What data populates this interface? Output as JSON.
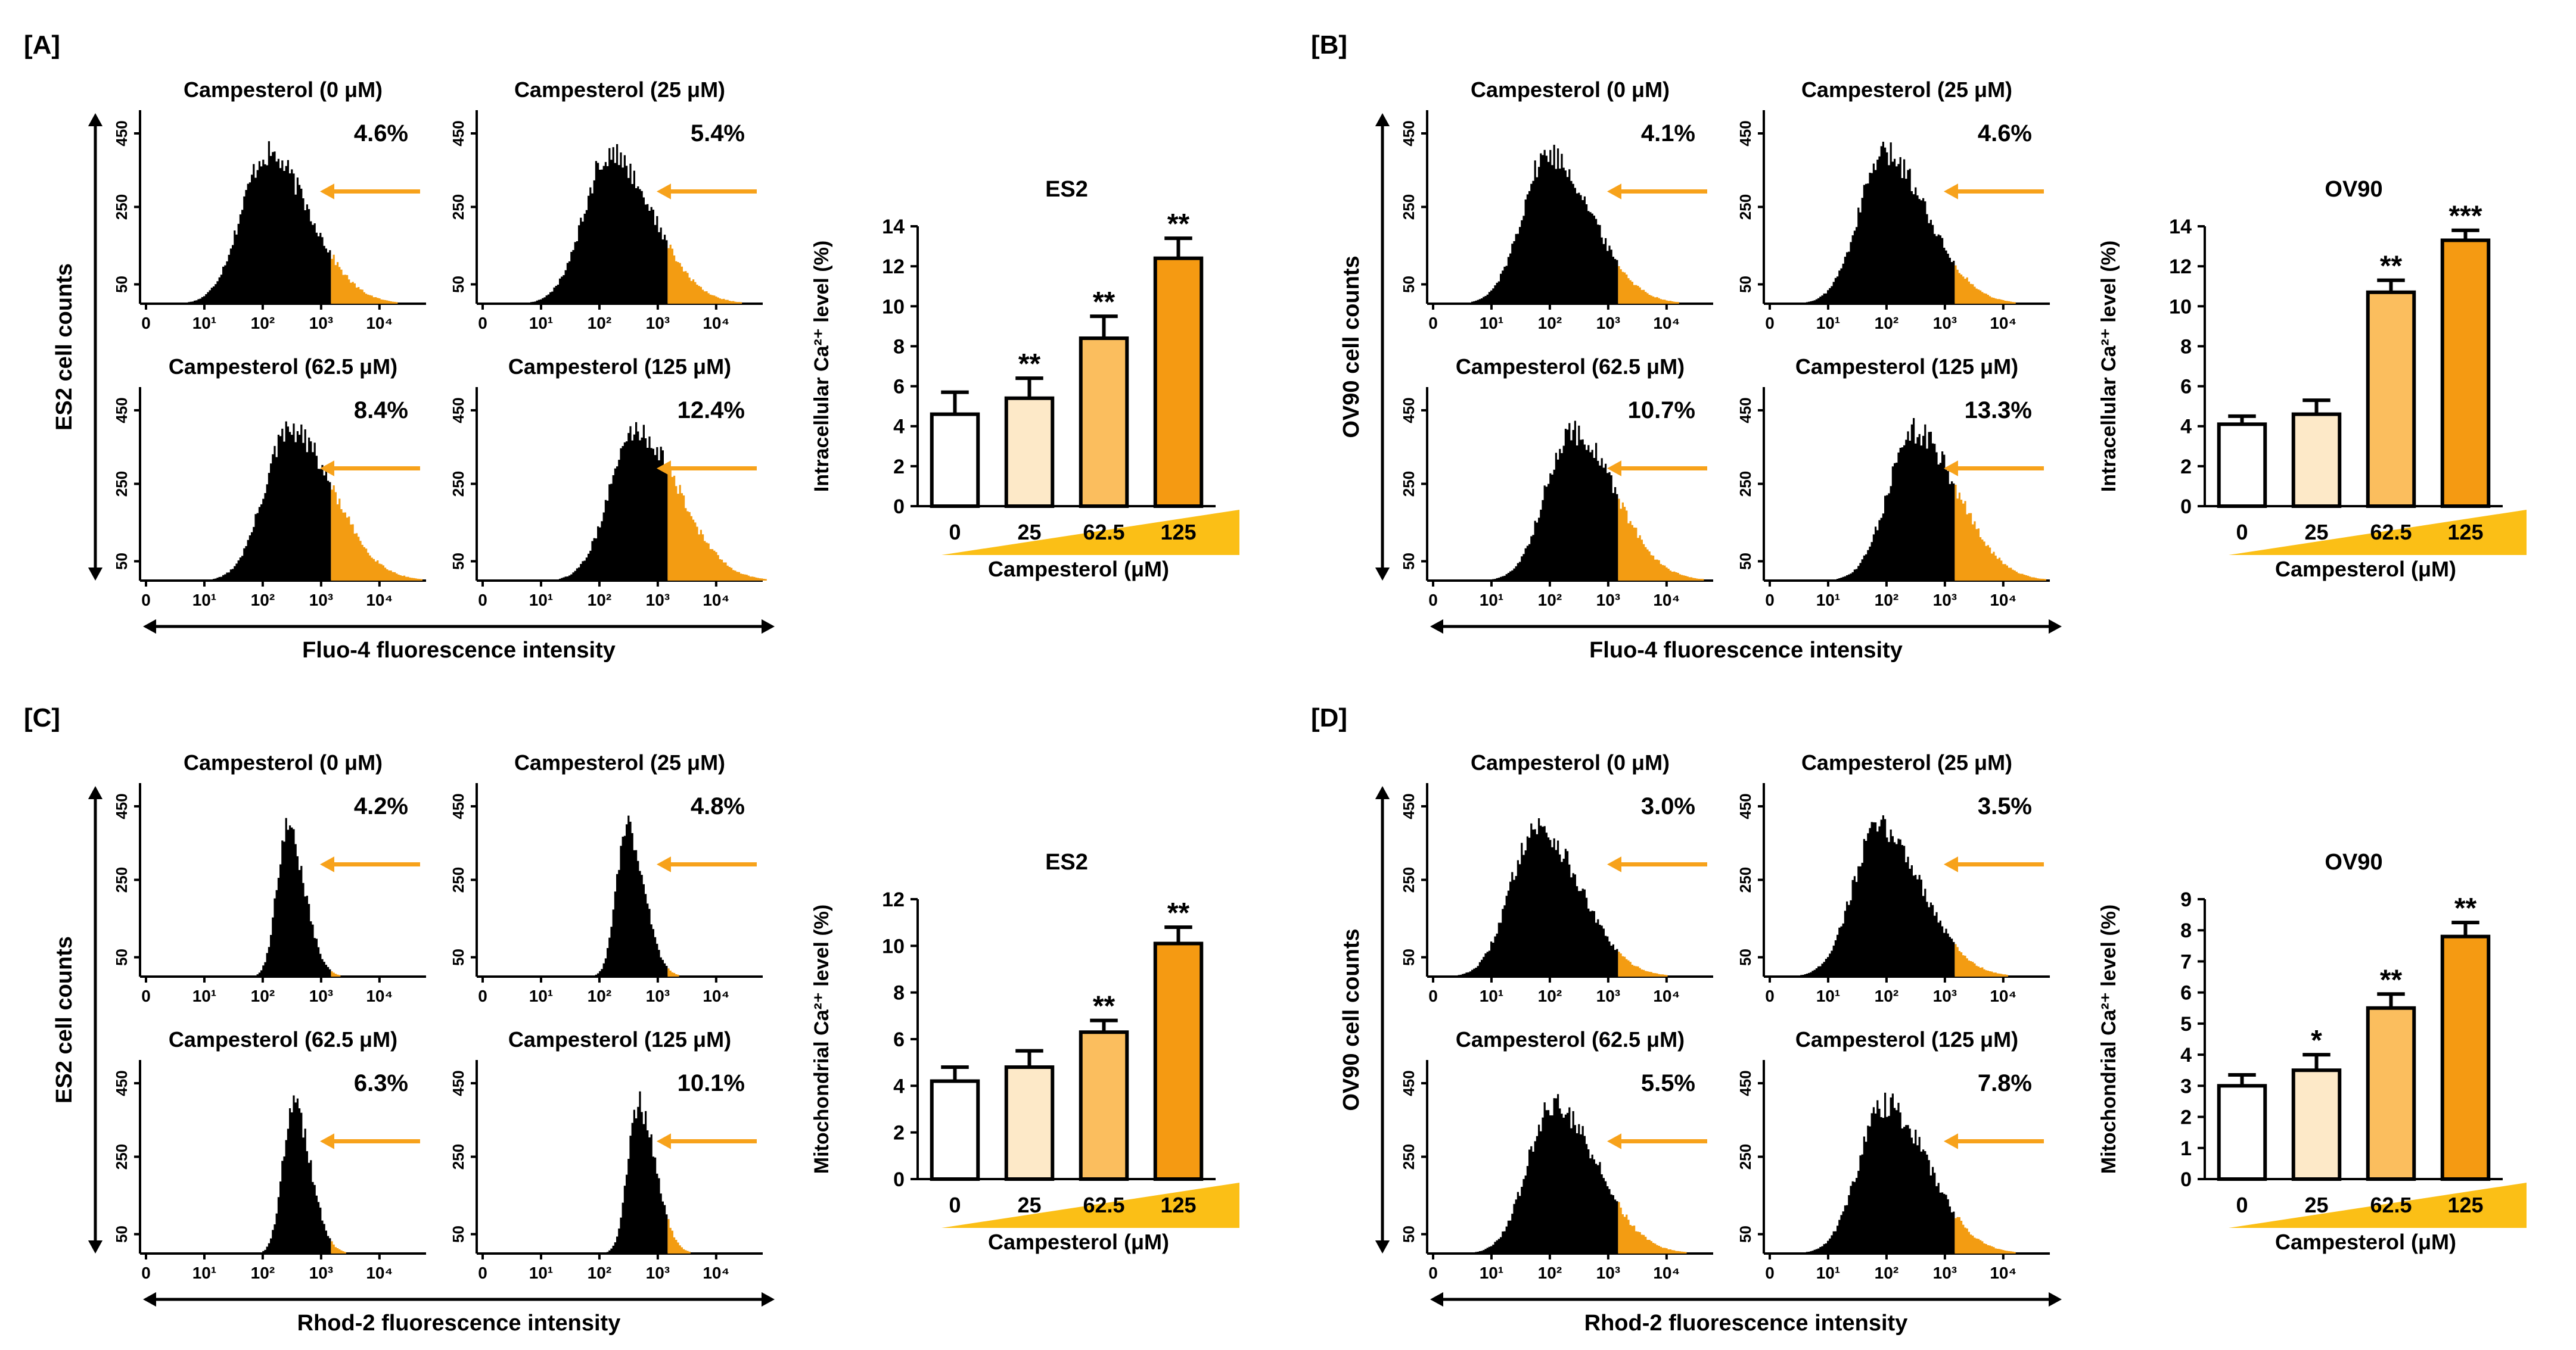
{
  "figure": {
    "panels": [
      {
        "label": "[A]",
        "cell_axis_label": "ES2 cell counts",
        "intensity_axis_label": "Fluo-4 fluorescence intensity",
        "histogram_titles": [
          "Campesterol (0 μM)",
          "Campesterol (25 μM)",
          "Campesterol (62.5 μM)",
          "Campesterol (125 μM)"
        ],
        "histogram_percentages": [
          "4.6%",
          "5.4%",
          "8.4%",
          "12.4%"
        ],
        "y_ticks": [
          "450",
          "250",
          "50"
        ],
        "x_ticks": [
          "0",
          "10¹",
          "10²",
          "10³",
          "10⁴"
        ],
        "distribution_peak_log": [
          2.0,
          2.1,
          2.4,
          2.55
        ],
        "distribution_width": "broad"
      },
      {
        "label": "[B]",
        "cell_axis_label": "OV90 cell counts",
        "intensity_axis_label": "Fluo-4 fluorescence intensity",
        "histogram_titles": [
          "Campesterol (0 μM)",
          "Campesterol (25 μM)",
          "Campesterol (62.5 μM)",
          "Campesterol (125 μM)"
        ],
        "histogram_percentages": [
          "4.1%",
          "4.6%",
          "10.7%",
          "13.3%"
        ],
        "y_ticks": [
          "450",
          "250",
          "50"
        ],
        "x_ticks": [
          "0",
          "10¹",
          "10²",
          "10³",
          "10⁴"
        ],
        "distribution_peak_log": [
          1.9,
          1.9,
          2.3,
          2.4
        ],
        "distribution_width": "broad"
      },
      {
        "label": "[C]",
        "cell_axis_label": "ES2 cell counts",
        "intensity_axis_label": "Rhod-2 fluorescence intensity",
        "histogram_titles": [
          "Campesterol (0 μM)",
          "Campesterol (25 μM)",
          "Campesterol (62.5 μM)",
          "Campesterol (125 μM)"
        ],
        "histogram_percentages": [
          "4.2%",
          "4.8%",
          "6.3%",
          "10.1%"
        ],
        "y_ticks": [
          "450",
          "250",
          "50"
        ],
        "x_ticks": [
          "0",
          "10¹",
          "10²",
          "10³",
          "10⁴"
        ],
        "distribution_peak_log": [
          2.35,
          2.4,
          2.45,
          2.6
        ],
        "distribution_width": "narrow"
      },
      {
        "label": "[D]",
        "cell_axis_label": "OV90 cell counts",
        "intensity_axis_label": "Rhod-2 fluorescence intensity",
        "histogram_titles": [
          "Campesterol (0 μM)",
          "Campesterol (25 μM)",
          "Campesterol (62.5 μM)",
          "Campesterol (125 μM)"
        ],
        "histogram_percentages": [
          "3.0%",
          "3.5%",
          "5.5%",
          "7.8%"
        ],
        "y_ticks": [
          "450",
          "250",
          "50"
        ],
        "x_ticks": [
          "0",
          "10¹",
          "10²",
          "10³",
          "10⁴"
        ],
        "distribution_peak_log": [
          1.7,
          1.8,
          2.0,
          1.9
        ],
        "distribution_width": "broad"
      }
    ],
    "colors": {
      "histogram_fill": "#000000",
      "gated_tail": "#f39c12",
      "arrow": "#f7a21b",
      "bars": [
        "#ffffff",
        "#fde9c8",
        "#fbbe5e",
        "#f59a12"
      ],
      "ramp": "#fbbf16"
    }
  },
  "chart_data": [
    {
      "type": "bar",
      "title": "ES2",
      "ylabel": "Intracellular Ca²⁺ level (%)",
      "xlabel": "Campesterol (μM)",
      "categories": [
        "0",
        "25",
        "62.5",
        "125"
      ],
      "values": [
        4.6,
        5.4,
        8.4,
        12.4
      ],
      "errors": [
        1.1,
        1.0,
        1.1,
        1.0
      ],
      "significance": [
        "",
        "**",
        "**",
        "**"
      ],
      "ylim": [
        0,
        14
      ],
      "yticks": [
        "0",
        "2",
        "4",
        "6",
        "8",
        "10",
        "12",
        "14"
      ]
    },
    {
      "type": "bar",
      "title": "OV90",
      "ylabel": "Intracellular Ca²⁺ level (%)",
      "xlabel": "Campesterol (μM)",
      "categories": [
        "0",
        "25",
        "62.5",
        "125"
      ],
      "values": [
        4.1,
        4.6,
        10.7,
        13.3
      ],
      "errors": [
        0.4,
        0.7,
        0.6,
        0.5
      ],
      "significance": [
        "",
        "",
        "**",
        "***"
      ],
      "ylim": [
        0,
        14
      ],
      "yticks": [
        "0",
        "2",
        "4",
        "6",
        "8",
        "10",
        "12",
        "14"
      ]
    },
    {
      "type": "bar",
      "title": "ES2",
      "ylabel": "Mitochondrial Ca²⁺ level (%)",
      "xlabel": "Campesterol (μM)",
      "categories": [
        "0",
        "25",
        "62.5",
        "125"
      ],
      "values": [
        4.2,
        4.8,
        6.3,
        10.1
      ],
      "errors": [
        0.6,
        0.7,
        0.5,
        0.7
      ],
      "significance": [
        "",
        "",
        "**",
        "**"
      ],
      "ylim": [
        0,
        12
      ],
      "yticks": [
        "0",
        "2",
        "4",
        "6",
        "8",
        "10",
        "12"
      ]
    },
    {
      "type": "bar",
      "title": "OV90",
      "ylabel": "Mitochondrial Ca²⁺ level (%)",
      "xlabel": "Campesterol (μM)",
      "categories": [
        "0",
        "25",
        "62.5",
        "125"
      ],
      "values": [
        3.0,
        3.5,
        5.5,
        7.8
      ],
      "errors": [
        0.35,
        0.5,
        0.45,
        0.45
      ],
      "significance": [
        "",
        "*",
        "**",
        "**"
      ],
      "ylim": [
        0,
        9
      ],
      "yticks": [
        "0",
        "1",
        "2",
        "3",
        "4",
        "5",
        "6",
        "7",
        "8",
        "9"
      ]
    }
  ]
}
